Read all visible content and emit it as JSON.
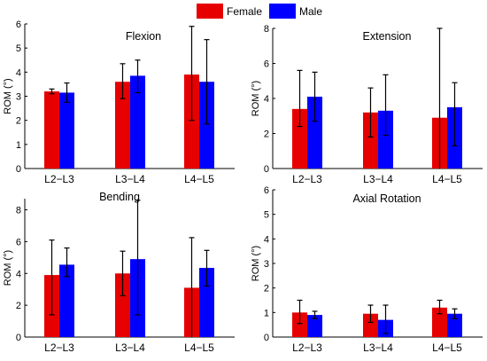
{
  "legend": {
    "placement": "top-center",
    "entries": [
      {
        "name": "Female",
        "color": "#e60000"
      },
      {
        "name": "Male",
        "color": "#0000ff"
      }
    ]
  },
  "chart_data": [
    {
      "type": "bar",
      "title": "Flexion",
      "ylabel": "ROM (°)",
      "ylim": [
        0,
        6
      ],
      "yticks": [
        "0",
        "1",
        "2",
        "3",
        "4",
        "5",
        "6"
      ],
      "categories": [
        "L2−L3",
        "L3−L4",
        "L4−L5"
      ],
      "series": [
        {
          "name": "Female",
          "color": "#e60000",
          "values": [
            3.2,
            3.6,
            3.9
          ],
          "err_low": [
            3.1,
            2.9,
            2.0
          ],
          "err_high": [
            3.3,
            4.35,
            5.9
          ]
        },
        {
          "name": "Male",
          "color": "#0000ff",
          "values": [
            3.15,
            3.85,
            3.6
          ],
          "err_low": [
            2.75,
            3.15,
            1.85
          ],
          "err_high": [
            3.55,
            4.5,
            5.35
          ]
        }
      ]
    },
    {
      "type": "bar",
      "title": "Extension",
      "ylabel": "ROM (°)",
      "ylim": [
        0,
        8
      ],
      "yticks": [
        "0",
        "2",
        "4",
        "6",
        "8"
      ],
      "categories": [
        "L2−L3",
        "L3−L4",
        "L4−L5"
      ],
      "series": [
        {
          "name": "Female",
          "color": "#e60000",
          "values": [
            3.4,
            3.2,
            2.9
          ],
          "err_low": [
            2.4,
            1.8,
            0.0
          ],
          "err_high": [
            5.6,
            4.6,
            8.0
          ]
        },
        {
          "name": "Male",
          "color": "#0000ff",
          "values": [
            4.1,
            3.3,
            3.5
          ],
          "err_low": [
            2.7,
            1.9,
            1.3
          ],
          "err_high": [
            5.5,
            5.35,
            4.9
          ]
        }
      ]
    },
    {
      "type": "bar",
      "title": "Bending",
      "ylabel": "ROM (°)",
      "ylim": [
        0,
        8.7
      ],
      "yticks": [
        "0",
        "2",
        "4",
        "6",
        "8"
      ],
      "categories": [
        "L2−L3",
        "L3−L4",
        "L4−L5"
      ],
      "series": [
        {
          "name": "Female",
          "color": "#e60000",
          "values": [
            3.9,
            4.0,
            3.1
          ],
          "err_low": [
            1.4,
            2.6,
            0.0
          ],
          "err_high": [
            6.1,
            5.4,
            6.25
          ]
        },
        {
          "name": "Male",
          "color": "#0000ff",
          "values": [
            4.55,
            4.9,
            4.35
          ],
          "err_low": [
            3.8,
            1.4,
            3.2
          ],
          "err_high": [
            5.6,
            8.6,
            5.45
          ]
        }
      ]
    },
    {
      "type": "bar",
      "title": "Axial Rotation",
      "ylabel": "ROM (°)",
      "ylim": [
        0,
        6
      ],
      "yticks": [
        "0",
        "1",
        "2",
        "3",
        "4",
        "5",
        "6"
      ],
      "categories": [
        "L2−L3",
        "L3−L4",
        "L4−L5"
      ],
      "series": [
        {
          "name": "Female",
          "color": "#e60000",
          "values": [
            1.0,
            0.95,
            1.2
          ],
          "err_low": [
            0.55,
            0.6,
            0.95
          ],
          "err_high": [
            1.5,
            1.3,
            1.5
          ]
        },
        {
          "name": "Male",
          "color": "#0000ff",
          "values": [
            0.9,
            0.7,
            0.95
          ],
          "err_low": [
            0.75,
            0.15,
            0.75
          ],
          "err_high": [
            1.05,
            1.3,
            1.15
          ]
        }
      ]
    }
  ]
}
